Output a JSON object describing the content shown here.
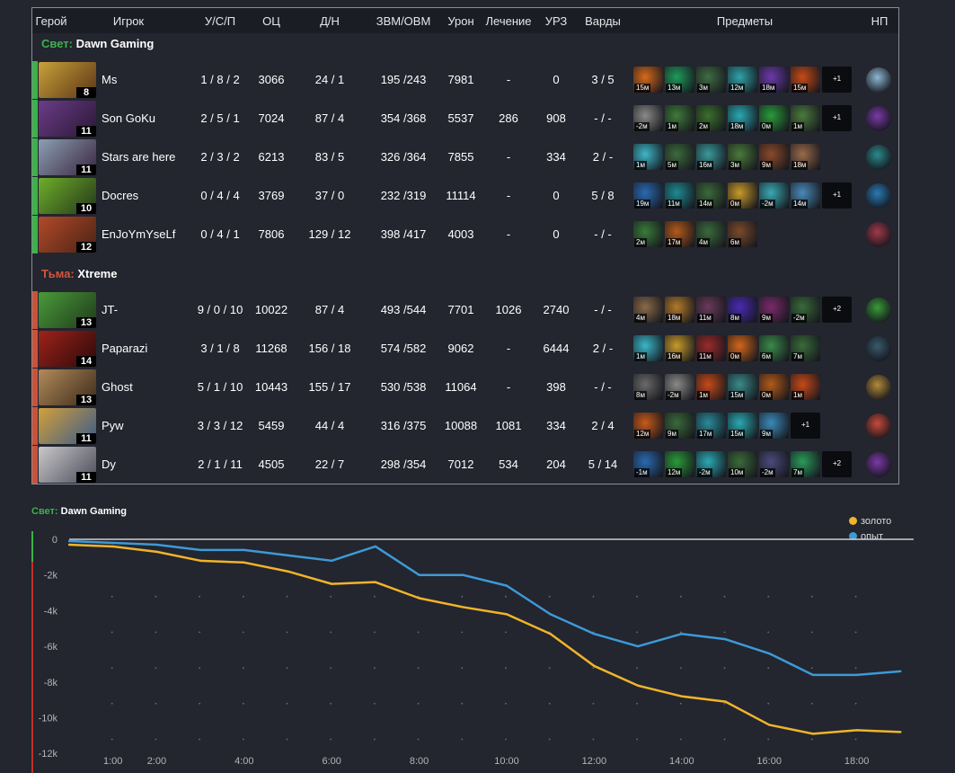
{
  "headers": {
    "hero": "Герой",
    "player": "Игрок",
    "kda": "У/С/П",
    "networth": "ОЦ",
    "lh_dn": "Д/Н",
    "gpm_xpm": "ЗВМ/ОВМ",
    "damage": "Урон",
    "healing": "Лечение",
    "building_damage": "УРЗ",
    "wards": "Варды",
    "items": "Предметы",
    "neutral": "НП"
  },
  "teams": [
    {
      "side_label": "Свет:",
      "name": "Dawn Gaming",
      "color": "#3db14a",
      "players": [
        {
          "level": "8",
          "name": "Ms",
          "kda": "1 / 8 / 2",
          "networth": "3066",
          "lh_dn": "24 / 1",
          "gpm_xpm": "195 /243",
          "damage": "7981",
          "healing": "-",
          "building_damage": "0",
          "wards": "3 / 5",
          "hero_colors": [
            "#c9a13a",
            "#5a3416"
          ],
          "neutral_color": "#8fb7d3",
          "items": [
            {
              "time": "15м",
              "color": "#d86a1a"
            },
            {
              "time": "13м",
              "color": "#1e9b5a"
            },
            {
              "time": "3м",
              "color": "#3f6c43"
            },
            {
              "time": "12м",
              "color": "#2fa3a8"
            },
            {
              "time": "18м",
              "color": "#6b3aa8"
            },
            {
              "time": "15м",
              "color": "#c74a18"
            }
          ],
          "more": "+1"
        },
        {
          "level": "11",
          "name": "Son GoKu",
          "kda": "2 / 5 / 1",
          "networth": "7024",
          "lh_dn": "87 / 4",
          "gpm_xpm": "354 /368",
          "damage": "5537",
          "healing": "286",
          "building_damage": "908",
          "wards": "- / -",
          "hero_colors": [
            "#6b3c88",
            "#2a1835"
          ],
          "neutral_color": "#7a3aa5",
          "items": [
            {
              "time": "-2м",
              "color": "#8a8a88"
            },
            {
              "time": "1м",
              "color": "#3e7a3a"
            },
            {
              "time": "2м",
              "color": "#3b6f2c"
            },
            {
              "time": "18м",
              "color": "#2aa9b2"
            },
            {
              "time": "0м",
              "color": "#2a9a3a"
            },
            {
              "time": "1м",
              "color": "#4b7a3c"
            }
          ],
          "more": "+1"
        },
        {
          "level": "11",
          "name": "Stars are here",
          "kda": "2 / 3 / 2",
          "networth": "6213",
          "lh_dn": "83 / 5",
          "gpm_xpm": "326 /364",
          "damage": "7855",
          "healing": "-",
          "building_damage": "334",
          "wards": "2 / -",
          "hero_colors": [
            "#8b9fb3",
            "#3a2540"
          ],
          "neutral_color": "#2c8a8a",
          "items": [
            {
              "time": "1м",
              "color": "#3fb7c8"
            },
            {
              "time": "5м",
              "color": "#3c6a3c"
            },
            {
              "time": "16м",
              "color": "#3a9a9a"
            },
            {
              "time": "3м",
              "color": "#4a7a3a"
            },
            {
              "time": "9м",
              "color": "#8a4a2a"
            },
            {
              "time": "18м",
              "color": "#9a6a4a"
            }
          ],
          "more": ""
        },
        {
          "level": "10",
          "name": "Docres",
          "kda": "0 / 4 / 4",
          "networth": "3769",
          "lh_dn": "37 / 0",
          "gpm_xpm": "232 /319",
          "damage": "11114",
          "healing": "-",
          "building_damage": "0",
          "wards": "5 / 8",
          "hero_colors": [
            "#6fae2a",
            "#23361a"
          ],
          "neutral_color": "#2a7ab2",
          "items": [
            {
              "time": "19м",
              "color": "#2a6ab0"
            },
            {
              "time": "11м",
              "color": "#1f8a92"
            },
            {
              "time": "14м",
              "color": "#3a6a3a"
            },
            {
              "time": "0м",
              "color": "#c79a2a"
            },
            {
              "time": "-2м",
              "color": "#3aa9b2"
            },
            {
              "time": "14м",
              "color": "#4a8ab8"
            }
          ],
          "more": "+1"
        },
        {
          "level": "12",
          "name": "EnJoYmYseLf",
          "kda": "0 / 4 / 1",
          "networth": "7806",
          "lh_dn": "129 / 12",
          "gpm_xpm": "398 /417",
          "damage": "4003",
          "healing": "-",
          "building_damage": "0",
          "wards": "- / -",
          "hero_colors": [
            "#b24a2a",
            "#4a2214"
          ],
          "neutral_color": "#a03a4a",
          "items": [
            {
              "time": "2м",
              "color": "#3a7a3a"
            },
            {
              "time": "17м",
              "color": "#b25a1a"
            },
            {
              "time": "4м",
              "color": "#3a6a3a"
            },
            {
              "time": "6м",
              "color": "#7a4a2a"
            }
          ],
          "more": ""
        }
      ]
    },
    {
      "side_label": "Тьма:",
      "name": "Xtreme",
      "color": "#c9533a",
      "players": [
        {
          "level": "13",
          "name": "JT-",
          "kda": "9 / 0 / 10",
          "networth": "10022",
          "lh_dn": "87 / 4",
          "gpm_xpm": "493 /544",
          "damage": "7701",
          "healing": "1026",
          "building_damage": "2740",
          "wards": "- / -",
          "hero_colors": [
            "#4a9a3a",
            "#1f3a1a"
          ],
          "neutral_color": "#3a9a3a",
          "items": [
            {
              "time": "4м",
              "color": "#8a6a4a"
            },
            {
              "time": "18м",
              "color": "#b27a2a"
            },
            {
              "time": "11м",
              "color": "#6a3a5a"
            },
            {
              "time": "8м",
              "color": "#4a2ab2"
            },
            {
              "time": "9м",
              "color": "#7a2a6a"
            },
            {
              "time": "-2м",
              "color": "#3a6a3a"
            }
          ],
          "more": "+2"
        },
        {
          "level": "14",
          "name": "Paparazi",
          "kda": "3 / 1 / 8",
          "networth": "11268",
          "lh_dn": "156 / 18",
          "gpm_xpm": "574 /582",
          "damage": "9062",
          "healing": "-",
          "building_damage": "6444",
          "wards": "2 / -",
          "hero_colors": [
            "#a0221a",
            "#2a0a0a"
          ],
          "neutral_color": "#3a5a6a",
          "items": [
            {
              "time": "1м",
              "color": "#3ab7c8"
            },
            {
              "time": "16м",
              "color": "#c79a2a"
            },
            {
              "time": "11м",
              "color": "#9a2a2a"
            },
            {
              "time": "0м",
              "color": "#d2661a"
            },
            {
              "time": "6м",
              "color": "#3a8a4a"
            },
            {
              "time": "7м",
              "color": "#3a6a3a"
            }
          ],
          "more": ""
        },
        {
          "level": "13",
          "name": "Ghost",
          "kda": "5 / 1 / 10",
          "networth": "10443",
          "lh_dn": "155 / 17",
          "gpm_xpm": "530 /538",
          "damage": "11064",
          "healing": "-",
          "building_damage": "398",
          "wards": "- / -",
          "hero_colors": [
            "#b28a5a",
            "#3a2a1a"
          ],
          "neutral_color": "#b28a3a",
          "items": [
            {
              "time": "8м",
              "color": "#6a6a6a"
            },
            {
              "time": "-2м",
              "color": "#8a8a88"
            },
            {
              "time": "1м",
              "color": "#c74a1a"
            },
            {
              "time": "15м",
              "color": "#3a8a8a"
            },
            {
              "time": "0м",
              "color": "#b25a1a"
            },
            {
              "time": "1м",
              "color": "#c74a18"
            }
          ],
          "more": ""
        },
        {
          "level": "11",
          "name": "Pyw",
          "kda": "3 / 3 / 12",
          "networth": "5459",
          "lh_dn": "44 / 4",
          "gpm_xpm": "316 /375",
          "damage": "10088",
          "healing": "1081",
          "building_damage": "334",
          "wards": "2 / 4",
          "hero_colors": [
            "#d2a03a",
            "#3a5a8a"
          ],
          "neutral_color": "#c74a3a",
          "items": [
            {
              "time": "12м",
              "color": "#c75a1a"
            },
            {
              "time": "9м",
              "color": "#3a6a3a"
            },
            {
              "time": "17м",
              "color": "#2a8a9a"
            },
            {
              "time": "15м",
              "color": "#2aa9b2"
            },
            {
              "time": "9м",
              "color": "#3a8ab8"
            }
          ],
          "more": "+1"
        },
        {
          "level": "11",
          "name": "Dy",
          "kda": "2 / 1 / 11",
          "networth": "4505",
          "lh_dn": "22 / 7",
          "gpm_xpm": "298 /354",
          "damage": "7012",
          "healing": "534",
          "building_damage": "204",
          "wards": "5 / 14",
          "hero_colors": [
            "#c9c9c9",
            "#4a4a5a"
          ],
          "neutral_color": "#7a3aa5",
          "items": [
            {
              "time": "-1м",
              "color": "#2a6ab0"
            },
            {
              "time": "12м",
              "color": "#2a9a3a"
            },
            {
              "time": "-2м",
              "color": "#2aa9b2"
            },
            {
              "time": "10м",
              "color": "#3a6a3a"
            },
            {
              "time": "-2м",
              "color": "#4a4a7a"
            },
            {
              "time": "7м",
              "color": "#2a9a5a"
            }
          ],
          "more": "+2"
        }
      ]
    }
  ],
  "chart_title": {
    "side_label": "Свет:",
    "team": "Dawn Gaming"
  },
  "legend": {
    "gold": "золото",
    "xp": "опыт",
    "gold_color": "#f0b429",
    "xp_color": "#3d9ad6"
  },
  "chart_data": {
    "type": "line",
    "title": "Свет: Dawn Gaming",
    "xlabel": "",
    "ylabel": "",
    "ylim": [
      -12000,
      0
    ],
    "xlim": [
      0,
      19
    ],
    "y_ticks": [
      0,
      -2000,
      -4000,
      -6000,
      -8000,
      -10000,
      -12000
    ],
    "y_tick_labels": [
      "0",
      "-2k",
      "-4k",
      "-6k",
      "-8k",
      "-10k",
      "-12k"
    ],
    "x_ticks": [
      1,
      2,
      4,
      6,
      8,
      10,
      12,
      14,
      16,
      18
    ],
    "x_tick_labels": [
      "1:00",
      "2:00",
      "4:00",
      "6:00",
      "8:00",
      "10:00",
      "12:00",
      "14:00",
      "16:00",
      "18:00"
    ],
    "grid": true,
    "legend_position": "top-right",
    "series": [
      {
        "name": "золото",
        "color": "#f0b429",
        "x": [
          0,
          1,
          2,
          3,
          4,
          5,
          6,
          7,
          8,
          9,
          10,
          11,
          12,
          13,
          14,
          15,
          16,
          17,
          18,
          19
        ],
        "y": [
          -300,
          -400,
          -700,
          -1200,
          -1300,
          -1800,
          -2500,
          -2400,
          -3300,
          -3800,
          -4200,
          -5300,
          -7100,
          -8200,
          -8800,
          -9100,
          -10400,
          -10900,
          -10700,
          -10800
        ]
      },
      {
        "name": "опыт",
        "color": "#3d9ad6",
        "x": [
          0,
          1,
          2,
          3,
          4,
          5,
          6,
          7,
          8,
          9,
          10,
          11,
          12,
          13,
          14,
          15,
          16,
          17,
          18,
          19
        ],
        "y": [
          -100,
          -200,
          -300,
          -600,
          -600,
          -900,
          -1200,
          -400,
          -2000,
          -2000,
          -2600,
          -4200,
          -5300,
          -6000,
          -5300,
          -5600,
          -6400,
          -7600,
          -7600,
          -7400
        ]
      }
    ]
  }
}
